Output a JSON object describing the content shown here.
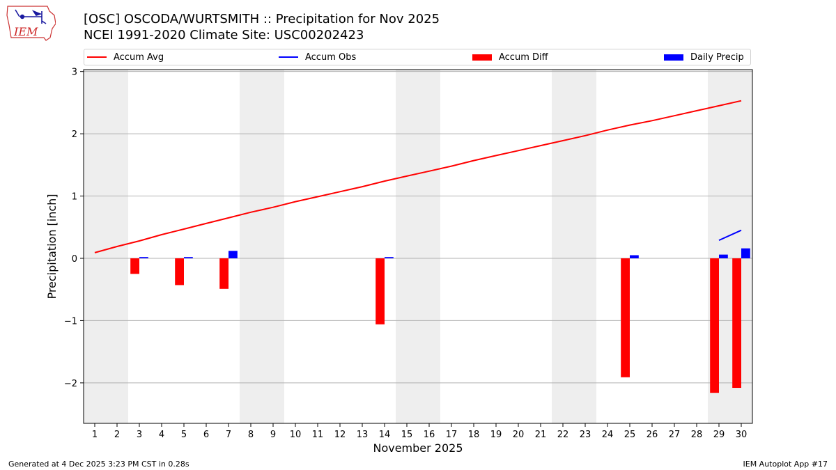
{
  "header": {
    "title_line1": "[OSC] OSCODA/WURTSMITH :: Precipitation for Nov 2025",
    "title_line2": "NCEI 1991-2020 Climate Site: USC00202423"
  },
  "logo": {
    "text": "IEM"
  },
  "legend": {
    "placement": "top",
    "items": [
      {
        "label": "Accum Avg",
        "kind": "line",
        "color": "#ff0000"
      },
      {
        "label": "Accum Obs",
        "kind": "line",
        "color": "#0000ff"
      },
      {
        "label": "Accum Diff",
        "kind": "bar",
        "color": "#ff0000"
      },
      {
        "label": "Daily Precip",
        "kind": "bar",
        "color": "#0000ff"
      }
    ]
  },
  "footer": {
    "left": "Generated at 4 Dec 2025 3:23 PM CST in 0.28s",
    "right": "IEM Autoplot App #17"
  },
  "chart_data": {
    "type": "bar",
    "xlabel": "November 2025",
    "ylabel": "Precipitation [inch]",
    "x": [
      1,
      2,
      3,
      4,
      5,
      6,
      7,
      8,
      9,
      10,
      11,
      12,
      13,
      14,
      15,
      16,
      17,
      18,
      19,
      20,
      21,
      22,
      23,
      24,
      25,
      26,
      27,
      28,
      29,
      30
    ],
    "xlim": [
      0.5,
      30.5
    ],
    "ylim": [
      -2.65,
      3.03
    ],
    "yticks": [
      -2,
      -1,
      0,
      1,
      2,
      3
    ],
    "grid": true,
    "weekend_shading": [
      [
        1,
        2
      ],
      [
        8,
        9
      ],
      [
        15,
        16
      ],
      [
        22,
        23
      ],
      [
        29,
        30
      ]
    ],
    "weekend_color": "#eeeeee",
    "series": [
      {
        "name": "Accum Avg",
        "kind": "line",
        "color": "#ff0000",
        "values": [
          0.09,
          0.19,
          0.28,
          0.38,
          0.47,
          0.56,
          0.65,
          0.74,
          0.82,
          0.91,
          0.99,
          1.07,
          1.15,
          1.24,
          1.32,
          1.4,
          1.48,
          1.57,
          1.65,
          1.73,
          1.81,
          1.89,
          1.97,
          2.06,
          2.14,
          2.21,
          2.29,
          2.37,
          2.45,
          2.53
        ]
      },
      {
        "name": "Accum Obs",
        "kind": "line",
        "color": "#0000ff",
        "values": [
          null,
          null,
          null,
          null,
          null,
          null,
          null,
          null,
          null,
          null,
          null,
          null,
          null,
          null,
          null,
          null,
          null,
          null,
          null,
          null,
          null,
          null,
          null,
          null,
          null,
          null,
          null,
          null,
          0.29,
          0.45
        ]
      },
      {
        "name": "Accum Diff",
        "kind": "bar",
        "color": "#ff0000",
        "values": [
          null,
          null,
          -0.25,
          null,
          -0.43,
          null,
          -0.49,
          null,
          null,
          null,
          null,
          null,
          null,
          -1.06,
          null,
          null,
          null,
          null,
          null,
          null,
          null,
          null,
          null,
          null,
          -1.91,
          null,
          null,
          null,
          -2.16,
          -2.08
        ]
      },
      {
        "name": "Daily Precip",
        "kind": "bar",
        "color": "#0000ff",
        "values": [
          null,
          null,
          0.02,
          null,
          0.02,
          null,
          0.12,
          null,
          null,
          null,
          null,
          null,
          null,
          0.02,
          null,
          null,
          null,
          null,
          null,
          null,
          null,
          null,
          null,
          null,
          0.05,
          null,
          null,
          null,
          0.06,
          0.16
        ]
      }
    ]
  }
}
